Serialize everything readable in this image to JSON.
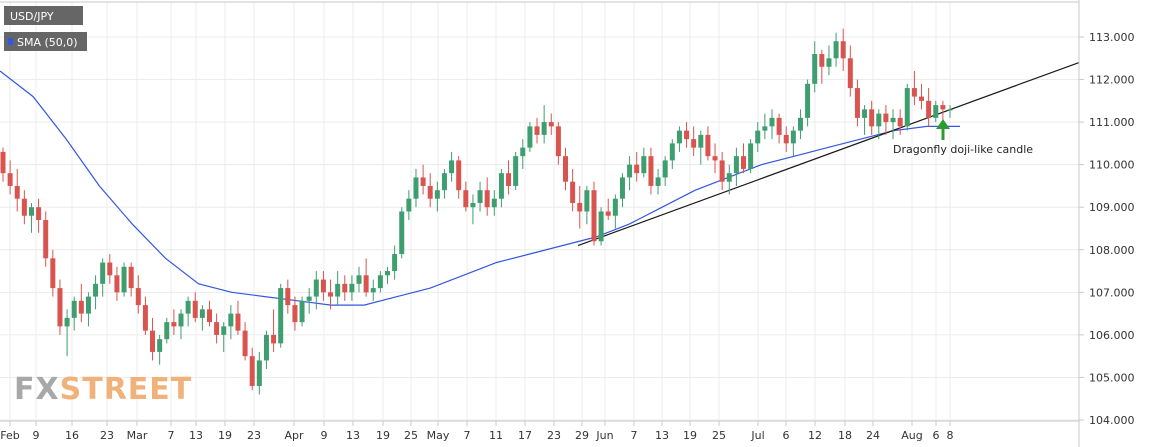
{
  "chart_data": {
    "type": "candlestick",
    "symbol": "USD/JPY",
    "indicator_label": "SMA (50,0)",
    "annotation": "Dragonfly doji-like candle",
    "watermark": {
      "part1": "FX",
      "part2": "STREET"
    },
    "ylim": [
      104.0,
      113.5
    ],
    "yticks": [
      "104.000",
      "105.000",
      "106.000",
      "107.000",
      "108.000",
      "109.000",
      "110.000",
      "111.000",
      "112.000",
      "113.000"
    ],
    "xticks": [
      "Feb",
      "9",
      "16",
      "23",
      "Mar",
      "7",
      "13",
      "19",
      "23",
      "Apr",
      "9",
      "13",
      "19",
      "25",
      "May",
      "7",
      "11",
      "17",
      "23",
      "29",
      "Jun",
      "7",
      "13",
      "19",
      "25",
      "Jul",
      "6",
      "12",
      "18",
      "24",
      "Aug",
      "6",
      "8"
    ],
    "grid": true,
    "legend_position": "top-left",
    "colors": {
      "up": "#3e9e6f",
      "down": "#d9534f",
      "sma": "#3357e0",
      "trendline": "#1a1a1a",
      "arrow": "#2f9a2f",
      "badge": "#666666",
      "watermark_fx": "#a8a8a8",
      "watermark_street": "#f0b27a"
    },
    "candles": [
      [
        110.3,
        110.4,
        109.6,
        109.8
      ],
      [
        109.8,
        110.1,
        109.3,
        109.5
      ],
      [
        109.5,
        109.9,
        108.9,
        109.2
      ],
      [
        109.2,
        109.4,
        108.6,
        108.8
      ],
      [
        108.8,
        109.1,
        108.4,
        109.0
      ],
      [
        109.0,
        109.2,
        108.4,
        108.7
      ],
      [
        108.7,
        108.9,
        107.6,
        107.8
      ],
      [
        107.8,
        108.0,
        106.9,
        107.1
      ],
      [
        107.1,
        107.3,
        106.0,
        106.2
      ],
      [
        106.2,
        106.6,
        105.5,
        106.4
      ],
      [
        106.4,
        106.9,
        106.1,
        106.8
      ],
      [
        106.8,
        107.2,
        106.3,
        106.5
      ],
      [
        106.5,
        107.0,
        106.2,
        106.9
      ],
      [
        106.9,
        107.4,
        106.6,
        107.2
      ],
      [
        107.2,
        107.8,
        106.9,
        107.7
      ],
      [
        107.7,
        107.9,
        107.2,
        107.4
      ],
      [
        107.4,
        107.6,
        106.8,
        107.0
      ],
      [
        107.0,
        107.7,
        106.9,
        107.6
      ],
      [
        107.6,
        107.7,
        106.9,
        107.1
      ],
      [
        107.1,
        107.4,
        106.5,
        106.7
      ],
      [
        106.7,
        106.9,
        106.0,
        106.1
      ],
      [
        106.1,
        106.4,
        105.4,
        105.6
      ],
      [
        105.6,
        106.0,
        105.3,
        105.9
      ],
      [
        105.9,
        106.4,
        105.8,
        106.3
      ],
      [
        106.3,
        106.6,
        106.0,
        106.2
      ],
      [
        106.2,
        106.6,
        105.9,
        106.5
      ],
      [
        106.5,
        106.9,
        106.2,
        106.8
      ],
      [
        106.8,
        107.0,
        106.3,
        106.4
      ],
      [
        106.4,
        106.7,
        106.1,
        106.6
      ],
      [
        106.6,
        106.8,
        106.2,
        106.3
      ],
      [
        106.3,
        106.5,
        105.8,
        106.0
      ],
      [
        106.0,
        106.3,
        105.6,
        106.2
      ],
      [
        106.2,
        106.7,
        105.9,
        106.5
      ],
      [
        106.5,
        106.8,
        106.0,
        106.1
      ],
      [
        106.1,
        106.3,
        105.4,
        105.5
      ],
      [
        105.5,
        105.7,
        104.7,
        104.8
      ],
      [
        104.8,
        105.6,
        104.6,
        105.4
      ],
      [
        105.4,
        106.1,
        105.2,
        106.0
      ],
      [
        106.0,
        106.6,
        105.6,
        105.8
      ],
      [
        105.8,
        107.2,
        105.7,
        107.1
      ],
      [
        107.1,
        107.3,
        106.5,
        106.7
      ],
      [
        106.7,
        106.9,
        106.1,
        106.3
      ],
      [
        106.3,
        106.9,
        106.2,
        106.8
      ],
      [
        106.8,
        107.1,
        106.5,
        106.9
      ],
      [
        106.9,
        107.5,
        106.6,
        107.3
      ],
      [
        107.3,
        107.5,
        106.8,
        107.0
      ],
      [
        107.0,
        107.3,
        106.6,
        106.9
      ],
      [
        106.9,
        107.5,
        106.7,
        107.2
      ],
      [
        107.2,
        107.4,
        106.8,
        107.0
      ],
      [
        107.0,
        107.4,
        106.8,
        107.2
      ],
      [
        107.2,
        107.6,
        107.0,
        107.4
      ],
      [
        107.4,
        107.8,
        106.9,
        107.0
      ],
      [
        107.0,
        107.3,
        106.8,
        107.1
      ],
      [
        107.1,
        107.5,
        107.0,
        107.4
      ],
      [
        107.4,
        107.6,
        107.2,
        107.5
      ],
      [
        107.5,
        108.1,
        107.3,
        107.9
      ],
      [
        107.9,
        109.0,
        107.8,
        108.9
      ],
      [
        108.9,
        109.4,
        108.7,
        109.2
      ],
      [
        109.2,
        109.9,
        109.0,
        109.7
      ],
      [
        109.7,
        110.0,
        109.3,
        109.5
      ],
      [
        109.5,
        109.8,
        109.0,
        109.2
      ],
      [
        109.2,
        109.6,
        108.9,
        109.4
      ],
      [
        109.4,
        109.9,
        109.2,
        109.8
      ],
      [
        109.8,
        110.3,
        109.6,
        110.1
      ],
      [
        110.1,
        110.2,
        109.2,
        109.4
      ],
      [
        109.4,
        109.6,
        108.9,
        109.0
      ],
      [
        109.0,
        109.3,
        108.6,
        109.1
      ],
      [
        109.1,
        109.6,
        108.9,
        109.4
      ],
      [
        109.4,
        109.7,
        108.8,
        109.0
      ],
      [
        109.0,
        109.4,
        108.8,
        109.2
      ],
      [
        109.2,
        109.9,
        109.0,
        109.8
      ],
      [
        109.8,
        110.1,
        109.3,
        109.5
      ],
      [
        109.5,
        110.3,
        109.4,
        110.2
      ],
      [
        110.2,
        110.6,
        109.9,
        110.4
      ],
      [
        110.4,
        111.0,
        110.3,
        110.9
      ],
      [
        110.9,
        111.1,
        110.5,
        110.7
      ],
      [
        110.7,
        111.4,
        110.5,
        111.0
      ],
      [
        111.0,
        111.2,
        110.7,
        110.9
      ],
      [
        110.9,
        111.0,
        110.0,
        110.2
      ],
      [
        110.2,
        110.4,
        109.4,
        109.6
      ],
      [
        109.6,
        109.9,
        108.9,
        109.1
      ],
      [
        109.1,
        109.5,
        108.5,
        108.9
      ],
      [
        108.9,
        109.5,
        108.6,
        109.4
      ],
      [
        109.4,
        109.6,
        108.1,
        108.2
      ],
      [
        108.2,
        109.0,
        108.1,
        108.9
      ],
      [
        108.9,
        109.2,
        108.7,
        108.8
      ],
      [
        108.8,
        109.3,
        108.5,
        109.2
      ],
      [
        109.2,
        109.8,
        109.0,
        109.7
      ],
      [
        109.7,
        110.2,
        109.4,
        110.0
      ],
      [
        110.0,
        110.3,
        109.6,
        109.8
      ],
      [
        109.8,
        110.4,
        109.7,
        110.2
      ],
      [
        110.2,
        110.4,
        109.3,
        109.5
      ],
      [
        109.5,
        109.9,
        109.3,
        109.7
      ],
      [
        109.7,
        110.2,
        109.5,
        110.1
      ],
      [
        110.1,
        110.6,
        109.9,
        110.5
      ],
      [
        110.5,
        110.9,
        110.3,
        110.8
      ],
      [
        110.8,
        111.0,
        110.4,
        110.6
      ],
      [
        110.6,
        110.9,
        110.2,
        110.4
      ],
      [
        110.4,
        110.8,
        110.0,
        110.7
      ],
      [
        110.7,
        110.9,
        110.1,
        110.2
      ],
      [
        110.2,
        110.5,
        109.8,
        110.1
      ],
      [
        110.1,
        110.3,
        109.4,
        109.6
      ],
      [
        109.6,
        110.0,
        109.3,
        109.8
      ],
      [
        109.8,
        110.4,
        109.5,
        110.2
      ],
      [
        110.2,
        110.5,
        109.8,
        109.9
      ],
      [
        109.9,
        110.6,
        109.8,
        110.5
      ],
      [
        110.5,
        111.0,
        110.3,
        110.8
      ],
      [
        110.8,
        111.2,
        110.6,
        110.9
      ],
      [
        110.9,
        111.3,
        110.6,
        111.1
      ],
      [
        111.1,
        111.2,
        110.5,
        110.7
      ],
      [
        110.7,
        110.9,
        110.3,
        110.5
      ],
      [
        110.5,
        110.9,
        110.2,
        110.8
      ],
      [
        110.8,
        111.3,
        110.6,
        111.1
      ],
      [
        111.1,
        112.0,
        110.9,
        111.9
      ],
      [
        111.9,
        112.9,
        111.7,
        112.6
      ],
      [
        112.6,
        112.7,
        111.9,
        112.3
      ],
      [
        112.3,
        112.8,
        112.1,
        112.5
      ],
      [
        112.5,
        113.1,
        112.3,
        112.9
      ],
      [
        112.9,
        113.2,
        112.2,
        112.5
      ],
      [
        112.5,
        112.8,
        111.6,
        111.8
      ],
      [
        111.8,
        112.0,
        110.9,
        111.1
      ],
      [
        111.1,
        111.4,
        110.7,
        111.3
      ],
      [
        111.3,
        111.5,
        110.7,
        110.9
      ],
      [
        110.9,
        111.3,
        110.6,
        111.2
      ],
      [
        111.2,
        111.4,
        110.7,
        111.0
      ],
      [
        111.0,
        111.3,
        110.6,
        111.1
      ],
      [
        111.1,
        111.3,
        110.7,
        110.9
      ],
      [
        110.9,
        111.9,
        110.8,
        111.8
      ],
      [
        111.8,
        112.2,
        111.4,
        111.6
      ],
      [
        111.6,
        111.9,
        111.3,
        111.5
      ],
      [
        111.5,
        111.8,
        110.9,
        111.1
      ],
      [
        111.1,
        111.5,
        111.0,
        111.4
      ],
      [
        111.4,
        111.5,
        111.0,
        111.3
      ],
      [
        111.3,
        111.4,
        111.1,
        111.3
      ]
    ],
    "sma": [
      [
        0,
        112.2
      ],
      [
        20,
        111.6
      ],
      [
        40,
        110.6
      ],
      [
        60,
        109.5
      ],
      [
        80,
        108.6
      ],
      [
        100,
        107.8
      ],
      [
        120,
        107.2
      ],
      [
        140,
        107.0
      ],
      [
        160,
        106.9
      ],
      [
        180,
        106.8
      ],
      [
        200,
        106.7
      ],
      [
        220,
        106.7
      ],
      [
        240,
        106.9
      ],
      [
        260,
        107.1
      ],
      [
        280,
        107.4
      ],
      [
        300,
        107.7
      ],
      [
        320,
        107.9
      ],
      [
        340,
        108.1
      ],
      [
        360,
        108.3
      ],
      [
        380,
        108.6
      ],
      [
        400,
        109.0
      ],
      [
        420,
        109.4
      ],
      [
        440,
        109.7
      ],
      [
        460,
        110.0
      ],
      [
        480,
        110.2
      ],
      [
        500,
        110.4
      ],
      [
        520,
        110.6
      ],
      [
        540,
        110.8
      ],
      [
        560,
        110.9
      ],
      [
        580,
        110.9
      ]
    ],
    "trendline": [
      [
        108.1,
        1
      ],
      [
        112.4,
        1
      ]
    ]
  }
}
